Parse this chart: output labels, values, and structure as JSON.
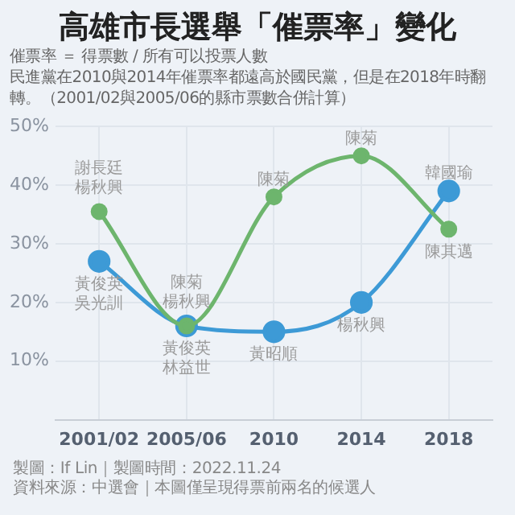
{
  "chart_data": {
    "type": "line",
    "title": "高雄市長選舉「催票率」變化",
    "subtitle": [
      "催票率 ＝ 得票數 / 所有可以投票人數",
      "民進黨在2010與2014年催票率都遠高於國民黨，但是在2018年時翻轉。（2001/02與2005/06的縣市票數合併計算）"
    ],
    "categories": [
      "2001/02",
      "2005/06",
      "2010",
      "2014",
      "2018"
    ],
    "series": [
      {
        "color": "#6db56d",
        "values": [
          35.5,
          16,
          38,
          45,
          32.5
        ],
        "value_labels": [
          [
            "謝長廷",
            "楊秋興"
          ],
          [
            "陳菊",
            "楊秋興"
          ],
          "陳菊",
          "陳菊",
          "陳其邁"
        ]
      },
      {
        "color": "#3d9ad6",
        "values": [
          27,
          16,
          15,
          20,
          39
        ],
        "value_labels": [
          [
            "黃俊英",
            "吳光訓"
          ],
          [
            "黃俊英",
            "林益世"
          ],
          "黃昭順",
          "楊秋興",
          "韓國瑜"
        ]
      }
    ],
    "ylim": [
      0,
      50
    ],
    "yticks": [
      {
        "value": 10,
        "label": "10%"
      },
      {
        "value": 20,
        "label": "20%"
      },
      {
        "value": 30,
        "label": "30%"
      },
      {
        "value": 40,
        "label": "40%"
      },
      {
        "value": 50,
        "label": "50%"
      }
    ],
    "grid": true,
    "marker": "circle",
    "line_style": "solid",
    "annotations": [
      "製圖：If Lin｜製圖時間：2022.11.24",
      "資料來源：中選會｜本圖僅呈現得票前兩名的候選人"
    ]
  }
}
